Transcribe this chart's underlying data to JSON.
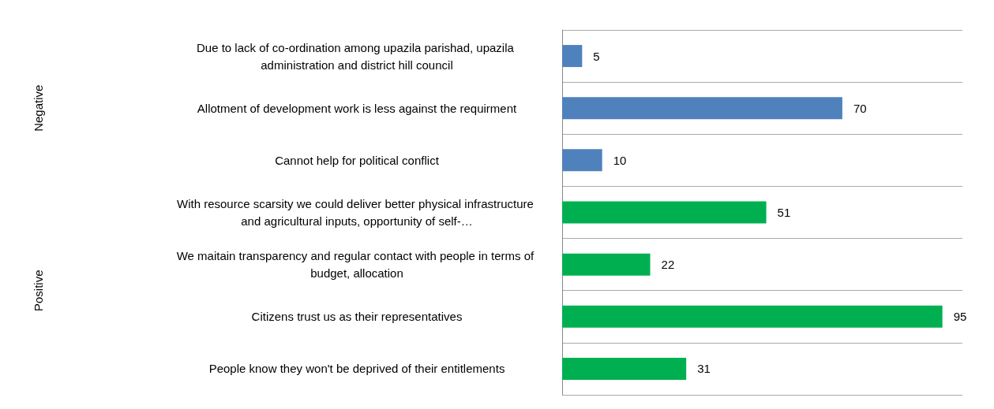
{
  "chart_data": {
    "type": "bar",
    "orientation": "horizontal",
    "data_labels": true,
    "annotations": [
      "Negative",
      "Positive"
    ],
    "categories": [
      "Due to lack of co-ordination among upazila parishad, upazila administration and district hill council",
      "Allotment of development work is less against the requirment",
      "Cannot help for political conflict",
      "With resource scarsity we could deliver better physical infrastructure and agricultural inputs, opportunity of self-…",
      "We maitain transparency and regular contact with people in terms of budget, allocation",
      "Citizens trust us as their representatives",
      "People know they won't be deprived of their entitlements"
    ],
    "series": [
      {
        "color": "#4f81bd",
        "values": [
          5,
          70,
          10,
          null,
          null,
          null,
          null
        ]
      },
      {
        "color": "#00b050",
        "values": [
          null,
          null,
          null,
          51,
          22,
          95,
          31
        ]
      }
    ]
  }
}
